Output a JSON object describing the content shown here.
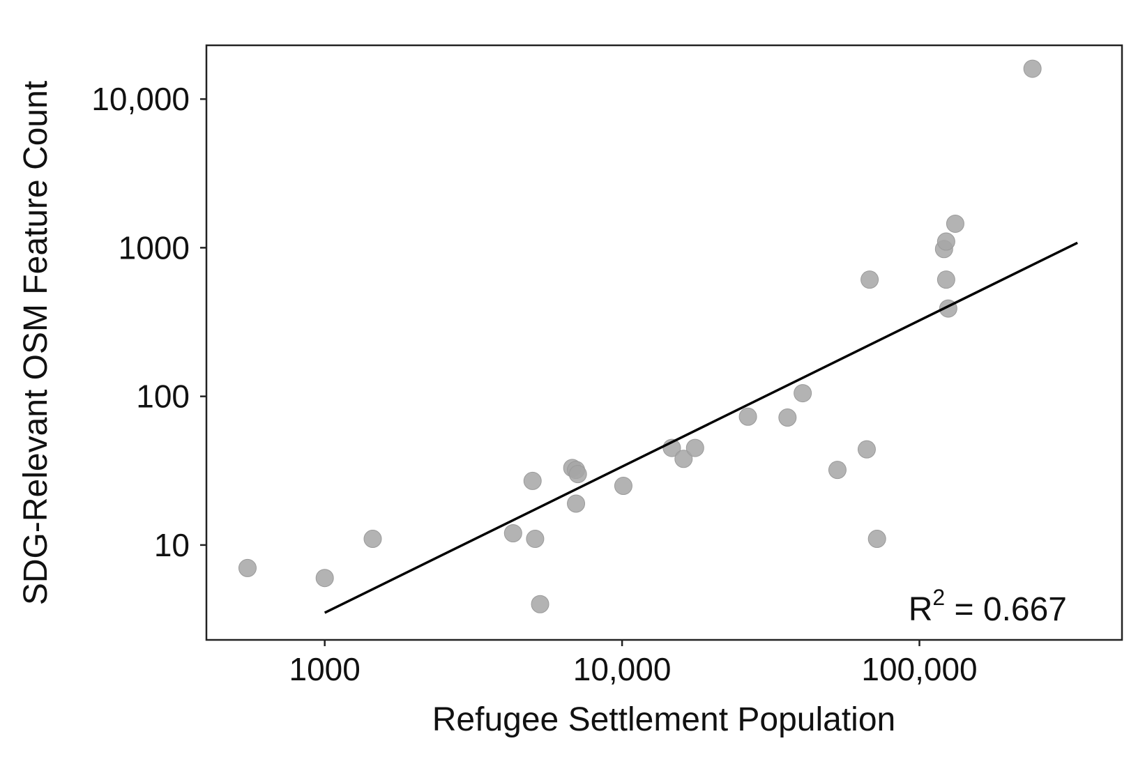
{
  "chart_data": {
    "type": "scatter",
    "title": "",
    "xlabel": "Refugee Settlement Population",
    "ylabel": "SDG-Relevant OSM Feature Count",
    "x_scale": "log",
    "y_scale": "log",
    "xlim": [
      400,
      480000
    ],
    "ylim": [
      2.3,
      23000
    ],
    "x_ticks": [
      {
        "value": 1000,
        "label": "1000"
      },
      {
        "value": 10000,
        "label": "10,000"
      },
      {
        "value": 100000,
        "label": "100,000"
      }
    ],
    "y_ticks": [
      {
        "value": 10,
        "label": "10"
      },
      {
        "value": 100,
        "label": "100"
      },
      {
        "value": 1000,
        "label": "1000"
      },
      {
        "value": 10000,
        "label": "10,000"
      }
    ],
    "grid": false,
    "legend": "none",
    "point_color": "#a6a6a6",
    "line_color": "#000000",
    "points": [
      {
        "x": 550,
        "y": 7
      },
      {
        "x": 1000,
        "y": 6
      },
      {
        "x": 1450,
        "y": 11
      },
      {
        "x": 4300,
        "y": 12
      },
      {
        "x": 5000,
        "y": 27
      },
      {
        "x": 5100,
        "y": 11
      },
      {
        "x": 5300,
        "y": 4
      },
      {
        "x": 6800,
        "y": 33
      },
      {
        "x": 7000,
        "y": 32
      },
      {
        "x": 7100,
        "y": 30
      },
      {
        "x": 7000,
        "y": 19
      },
      {
        "x": 10100,
        "y": 25
      },
      {
        "x": 14700,
        "y": 45
      },
      {
        "x": 16100,
        "y": 38
      },
      {
        "x": 17600,
        "y": 45
      },
      {
        "x": 26500,
        "y": 73
      },
      {
        "x": 36000,
        "y": 72
      },
      {
        "x": 40500,
        "y": 105
      },
      {
        "x": 53000,
        "y": 32
      },
      {
        "x": 66500,
        "y": 44
      },
      {
        "x": 68000,
        "y": 610
      },
      {
        "x": 72000,
        "y": 11
      },
      {
        "x": 121000,
        "y": 980
      },
      {
        "x": 123000,
        "y": 1100
      },
      {
        "x": 123000,
        "y": 610
      },
      {
        "x": 125000,
        "y": 390
      },
      {
        "x": 132000,
        "y": 1450
      },
      {
        "x": 240000,
        "y": 16000
      }
    ],
    "fit_line": {
      "x": [
        1000,
        340000
      ],
      "y": [
        3.5,
        1080
      ]
    },
    "annotation": {
      "text": "R",
      "superscript": "2",
      "rest": " = 0.667"
    }
  }
}
